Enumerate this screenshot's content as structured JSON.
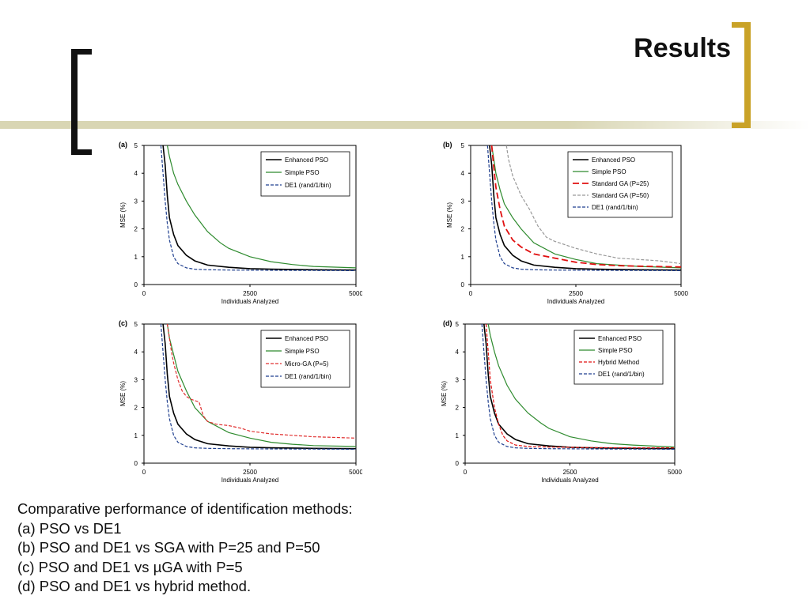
{
  "slide": {
    "title": "Results",
    "accent_color": "#c9a227",
    "band_color": "#d9d6b4",
    "caption": [
      "Comparative performance of identification methods:",
      "(a) PSO vs DE1",
      "(b) PSO and DE1 vs SGA with P=25 and P=50",
      "(c) PSO and DE1 vs µGA with P=5",
      "(d) PSO and DE1 vs hybrid method."
    ]
  },
  "chart_data": [
    {
      "type": "line",
      "panel": "(a)",
      "xlabel": "Individuals Analyzed",
      "ylabel": "MSE (%)",
      "xlim": [
        0,
        5000
      ],
      "ylim": [
        0,
        5
      ],
      "xticks": [
        "0",
        "2500",
        "5000"
      ],
      "yticks": [
        "0",
        "1",
        "2",
        "3",
        "4",
        "5"
      ],
      "legend": "top-right",
      "series": [
        {
          "name": "Enhanced PSO",
          "color": "#000000",
          "dash": "solid",
          "width": 1.6,
          "x": [
            450,
            500,
            550,
            600,
            700,
            800,
            1000,
            1200,
            1500,
            2000,
            2500,
            3000,
            4000,
            5000
          ],
          "y": [
            5,
            4.3,
            3.2,
            2.4,
            1.8,
            1.4,
            1.05,
            0.85,
            0.7,
            0.62,
            0.57,
            0.55,
            0.53,
            0.52
          ]
        },
        {
          "name": "Simple PSO",
          "color": "#2e8b2e",
          "dash": "solid",
          "width": 1.2,
          "x": [
            550,
            600,
            700,
            800,
            1000,
            1200,
            1500,
            1800,
            2000,
            2500,
            3000,
            3500,
            4000,
            5000
          ],
          "y": [
            5,
            4.6,
            4.0,
            3.6,
            3.0,
            2.5,
            1.9,
            1.5,
            1.3,
            1.0,
            0.82,
            0.72,
            0.65,
            0.6
          ]
        },
        {
          "name": "DE1 (rand/1/bin)",
          "color": "#1f3f8f",
          "dash": "dashed",
          "width": 1.2,
          "x": [
            400,
            450,
            500,
            550,
            600,
            700,
            800,
            1000,
            1200,
            1500,
            2000,
            3000,
            5000
          ],
          "y": [
            5,
            4.0,
            3.0,
            2.2,
            1.6,
            1.0,
            0.75,
            0.6,
            0.55,
            0.53,
            0.52,
            0.51,
            0.5
          ]
        }
      ]
    },
    {
      "type": "line",
      "panel": "(b)",
      "xlabel": "Individuals Analyzed",
      "ylabel": "MSE (%)",
      "xlim": [
        0,
        5000
      ],
      "ylim": [
        0,
        5
      ],
      "xticks": [
        "0",
        "2500",
        "5000"
      ],
      "yticks": [
        "0",
        "1",
        "2",
        "3",
        "4",
        "5"
      ],
      "legend": "top-right",
      "series": [
        {
          "name": "Enhanced PSO",
          "color": "#000000",
          "dash": "solid",
          "width": 1.6,
          "x": [
            450,
            500,
            550,
            600,
            700,
            800,
            1000,
            1200,
            1500,
            2000,
            2500,
            3000,
            4000,
            5000
          ],
          "y": [
            5,
            4.3,
            3.2,
            2.4,
            1.8,
            1.4,
            1.05,
            0.85,
            0.7,
            0.62,
            0.57,
            0.55,
            0.53,
            0.52
          ]
        },
        {
          "name": "Simple PSO",
          "color": "#2e8b2e",
          "dash": "solid",
          "width": 1.2,
          "x": [
            500,
            550,
            600,
            700,
            800,
            1000,
            1200,
            1500,
            2000,
            2500,
            3000,
            4000,
            5000
          ],
          "y": [
            5,
            4.5,
            4.0,
            3.4,
            2.9,
            2.4,
            2.0,
            1.5,
            1.1,
            0.9,
            0.75,
            0.65,
            0.6
          ]
        },
        {
          "name": "Standard GA (P=25)",
          "color": "#e01010",
          "dash": "longdash",
          "width": 1.8,
          "x": [
            500,
            550,
            600,
            700,
            800,
            1000,
            1200,
            1500,
            2000,
            2500,
            3000,
            3500,
            4000,
            5000
          ],
          "y": [
            5,
            4.2,
            3.5,
            2.7,
            2.1,
            1.6,
            1.35,
            1.1,
            0.95,
            0.8,
            0.72,
            0.68,
            0.66,
            0.63
          ]
        },
        {
          "name": "Standard GA (P=50)",
          "color": "#999999",
          "dash": "dashed",
          "width": 1.2,
          "x": [
            850,
            900,
            1000,
            1200,
            1400,
            1600,
            1800,
            2000,
            2500,
            3000,
            3500,
            4000,
            4500,
            5000
          ],
          "y": [
            5,
            4.5,
            3.9,
            3.2,
            2.7,
            2.1,
            1.7,
            1.55,
            1.3,
            1.1,
            0.95,
            0.9,
            0.85,
            0.75
          ]
        },
        {
          "name": "DE1 (rand/1/bin)",
          "color": "#1f3f8f",
          "dash": "dashed",
          "width": 1.2,
          "x": [
            400,
            450,
            500,
            550,
            600,
            700,
            800,
            1000,
            1200,
            1500,
            2000,
            3000,
            5000
          ],
          "y": [
            5,
            4.0,
            3.0,
            2.2,
            1.6,
            1.0,
            0.75,
            0.6,
            0.55,
            0.53,
            0.52,
            0.51,
            0.5
          ]
        }
      ]
    },
    {
      "type": "line",
      "panel": "(c)",
      "xlabel": "Individuals Analyzed",
      "ylabel": "MSE (%)",
      "xlim": [
        0,
        5000
      ],
      "ylim": [
        0,
        5
      ],
      "xticks": [
        "0",
        "2500",
        "5000"
      ],
      "yticks": [
        "0",
        "1",
        "2",
        "3",
        "4",
        "5"
      ],
      "legend": "top-right",
      "series": [
        {
          "name": "Enhanced PSO",
          "color": "#000000",
          "dash": "solid",
          "width": 1.6,
          "x": [
            450,
            500,
            550,
            600,
            700,
            800,
            1000,
            1200,
            1500,
            2000,
            2500,
            3000,
            4000,
            5000
          ],
          "y": [
            5,
            4.3,
            3.2,
            2.4,
            1.8,
            1.4,
            1.05,
            0.85,
            0.7,
            0.62,
            0.57,
            0.55,
            0.53,
            0.52
          ]
        },
        {
          "name": "Simple PSO",
          "color": "#2e8b2e",
          "dash": "solid",
          "width": 1.2,
          "x": [
            550,
            600,
            700,
            800,
            1000,
            1200,
            1500,
            2000,
            2500,
            3000,
            3500,
            4000,
            5000
          ],
          "y": [
            5,
            4.5,
            3.9,
            3.3,
            2.6,
            2.0,
            1.5,
            1.1,
            0.9,
            0.75,
            0.68,
            0.63,
            0.6
          ]
        },
        {
          "name": "Micro-GA (P=5)",
          "color": "#e03030",
          "dash": "dashed",
          "width": 1.2,
          "x": [
            550,
            600,
            650,
            700,
            800,
            900,
            1000,
            1100,
            1200,
            1300,
            1400,
            1500,
            1700,
            2000,
            2300,
            2500,
            3000,
            3500,
            4000,
            5000
          ],
          "y": [
            5,
            4.5,
            4.0,
            3.6,
            3.0,
            2.6,
            2.4,
            2.3,
            2.25,
            2.2,
            1.7,
            1.5,
            1.4,
            1.35,
            1.25,
            1.15,
            1.05,
            1.0,
            0.95,
            0.9
          ]
        },
        {
          "name": "DE1 (rand/1/bin)",
          "color": "#1f3f8f",
          "dash": "dashed",
          "width": 1.2,
          "x": [
            400,
            450,
            500,
            550,
            600,
            700,
            800,
            1000,
            1200,
            1500,
            2000,
            3000,
            5000
          ],
          "y": [
            5,
            4.0,
            3.0,
            2.2,
            1.6,
            1.0,
            0.75,
            0.6,
            0.55,
            0.53,
            0.52,
            0.51,
            0.5
          ]
        }
      ]
    },
    {
      "type": "line",
      "panel": "(d)",
      "xlabel": "Individuals Analyzed",
      "ylabel": "MSE (%)",
      "xlim": [
        0,
        5000
      ],
      "ylim": [
        0,
        5
      ],
      "xticks": [
        "0",
        "2500",
        "5000"
      ],
      "yticks": [
        "0",
        "1",
        "2",
        "3",
        "4",
        "5"
      ],
      "legend": "top-right",
      "series": [
        {
          "name": "Enhanced PSO",
          "color": "#000000",
          "dash": "solid",
          "width": 1.6,
          "x": [
            450,
            500,
            550,
            600,
            700,
            800,
            1000,
            1200,
            1500,
            2000,
            2500,
            3000,
            4000,
            5000
          ],
          "y": [
            5,
            4.3,
            3.2,
            2.4,
            1.8,
            1.4,
            1.05,
            0.85,
            0.7,
            0.62,
            0.57,
            0.55,
            0.53,
            0.52
          ]
        },
        {
          "name": "Simple PSO",
          "color": "#2e8b2e",
          "dash": "solid",
          "width": 1.2,
          "x": [
            550,
            600,
            700,
            800,
            1000,
            1200,
            1500,
            1800,
            2000,
            2500,
            3000,
            3500,
            4000,
            5000
          ],
          "y": [
            5,
            4.6,
            4.0,
            3.5,
            2.8,
            2.3,
            1.8,
            1.45,
            1.25,
            0.95,
            0.8,
            0.7,
            0.65,
            0.58
          ]
        },
        {
          "name": "Hybrid Method",
          "color": "#e01010",
          "dash": "dashed",
          "width": 1.2,
          "x": [
            500,
            550,
            600,
            700,
            800,
            900,
            1000,
            1200,
            1500,
            2000,
            3000,
            4000,
            5000
          ],
          "y": [
            5,
            4.0,
            3.0,
            2.0,
            1.4,
            1.0,
            0.8,
            0.65,
            0.6,
            0.58,
            0.56,
            0.55,
            0.55
          ]
        },
        {
          "name": "DE1 (rand/1/bin)",
          "color": "#1f3f8f",
          "dash": "dashed",
          "width": 1.2,
          "x": [
            400,
            450,
            500,
            550,
            600,
            700,
            800,
            1000,
            1200,
            1500,
            2000,
            3000,
            5000
          ],
          "y": [
            5,
            4.0,
            3.0,
            2.2,
            1.6,
            1.0,
            0.75,
            0.6,
            0.55,
            0.53,
            0.52,
            0.51,
            0.5
          ]
        }
      ]
    }
  ]
}
